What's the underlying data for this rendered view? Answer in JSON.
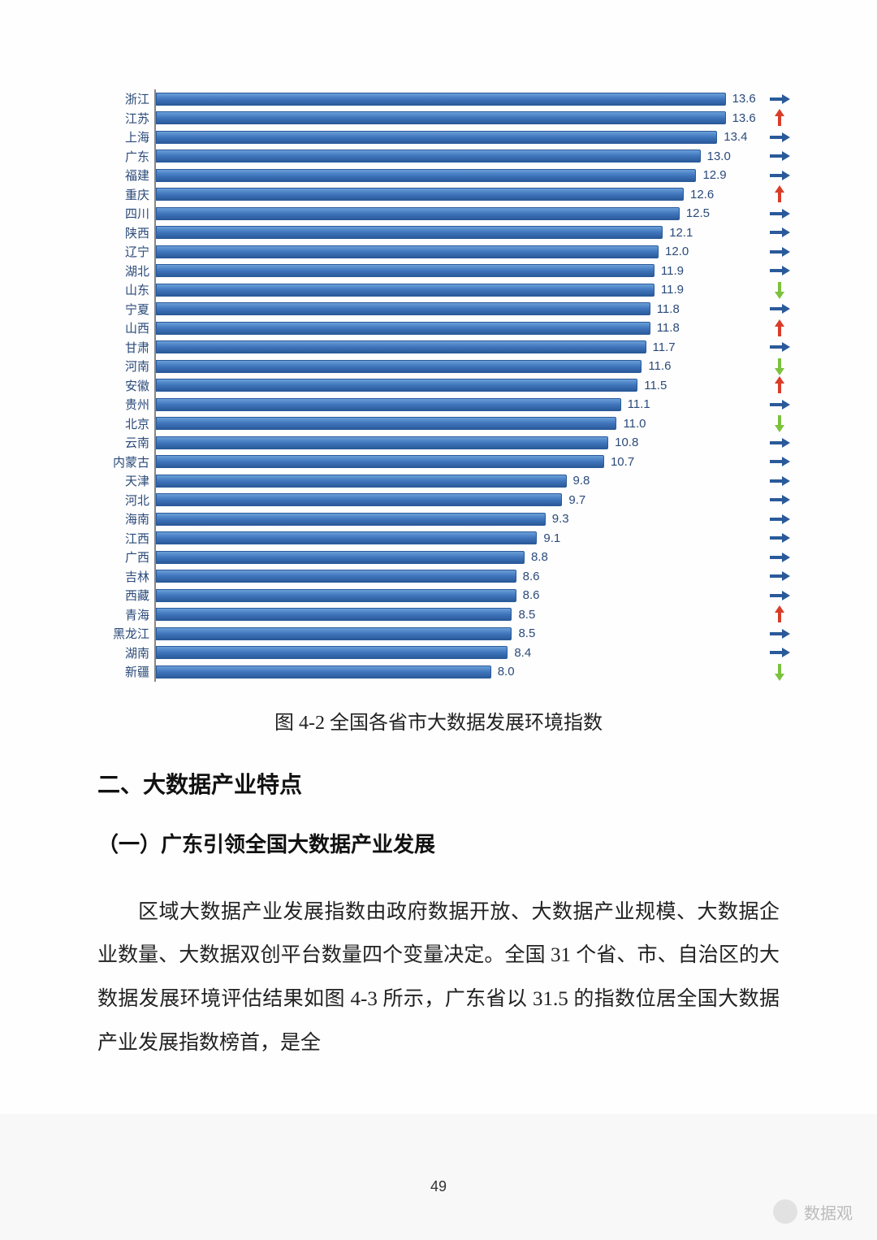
{
  "chart": {
    "type": "bar",
    "orientation": "horizontal",
    "xmax": 14.5,
    "bar_color_top": "#6a9fd8",
    "bar_color_bottom": "#2a5a9a",
    "bar_border": "#2a5a9a",
    "label_color": "#2b4a7a",
    "value_color": "#2b4a7a",
    "trend_colors": {
      "right": "#2a5a9a",
      "up": "#d83d2a",
      "down": "#7cc23e"
    },
    "rows": [
      {
        "label": "浙江",
        "value": 13.6,
        "trend": "right"
      },
      {
        "label": "江苏",
        "value": 13.6,
        "trend": "up"
      },
      {
        "label": "上海",
        "value": 13.4,
        "trend": "right"
      },
      {
        "label": "广东",
        "value": 13.0,
        "trend": "right"
      },
      {
        "label": "福建",
        "value": 12.9,
        "trend": "right"
      },
      {
        "label": "重庆",
        "value": 12.6,
        "trend": "up"
      },
      {
        "label": "四川",
        "value": 12.5,
        "trend": "right"
      },
      {
        "label": "陕西",
        "value": 12.1,
        "trend": "right"
      },
      {
        "label": "辽宁",
        "value": 12.0,
        "trend": "right"
      },
      {
        "label": "湖北",
        "value": 11.9,
        "trend": "right"
      },
      {
        "label": "山东",
        "value": 11.9,
        "trend": "down"
      },
      {
        "label": "宁夏",
        "value": 11.8,
        "trend": "right"
      },
      {
        "label": "山西",
        "value": 11.8,
        "trend": "up"
      },
      {
        "label": "甘肃",
        "value": 11.7,
        "trend": "right"
      },
      {
        "label": "河南",
        "value": 11.6,
        "trend": "down"
      },
      {
        "label": "安徽",
        "value": 11.5,
        "trend": "up"
      },
      {
        "label": "贵州",
        "value": 11.1,
        "trend": "right"
      },
      {
        "label": "北京",
        "value": 11.0,
        "trend": "down"
      },
      {
        "label": "云南",
        "value": 10.8,
        "trend": "right"
      },
      {
        "label": "内蒙古",
        "value": 10.7,
        "trend": "right"
      },
      {
        "label": "天津",
        "value": 9.8,
        "trend": "right"
      },
      {
        "label": "河北",
        "value": 9.7,
        "trend": "right"
      },
      {
        "label": "海南",
        "value": 9.3,
        "trend": "right"
      },
      {
        "label": "江西",
        "value": 9.1,
        "trend": "right"
      },
      {
        "label": "广西",
        "value": 8.8,
        "trend": "right"
      },
      {
        "label": "吉林",
        "value": 8.6,
        "trend": "right"
      },
      {
        "label": "西藏",
        "value": 8.6,
        "trend": "right"
      },
      {
        "label": "青海",
        "value": 8.5,
        "trend": "up"
      },
      {
        "label": "黑龙江",
        "value": 8.5,
        "trend": "right"
      },
      {
        "label": "湖南",
        "value": 8.4,
        "trend": "right"
      },
      {
        "label": "新疆",
        "value": 8.0,
        "trend": "down"
      }
    ]
  },
  "caption": "图 4-2 全国各省市大数据发展环境指数",
  "heading2": "二、大数据产业特点",
  "heading3": "（一）广东引领全国大数据产业发展",
  "paragraph": "区域大数据产业发展指数由政府数据开放、大数据产业规模、大数据企业数量、大数据双创平台数量四个变量决定。全国 31 个省、市、自治区的大数据发展环境评估结果如图 4-3 所示，广东省以 31.5 的指数位居全国大数据产业发展指数榜首，是全",
  "page_number": "49",
  "watermark_text": "数据观"
}
